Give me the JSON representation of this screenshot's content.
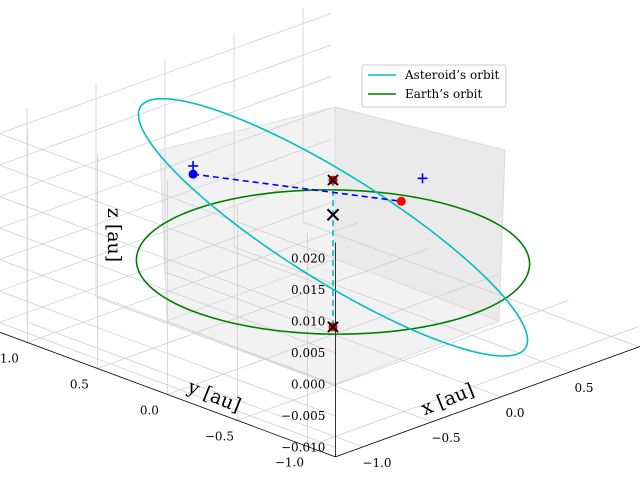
{
  "chart_data": {
    "type": "line",
    "projection": "3d",
    "grid": true,
    "legend_placement": "upper-right",
    "xlabel": "x [au]",
    "ylabel": "y [au]",
    "zlabel": "z [au]",
    "xlim": [
      -1.2,
      1.2
    ],
    "ylim": [
      -1.2,
      1.2
    ],
    "zlim": [
      -0.0115,
      0.0225
    ],
    "x_ticks": [
      "−1.0",
      "−0.5",
      "0.0",
      "0.5",
      "1.0"
    ],
    "y_ticks": [
      "−1.0",
      "−0.5",
      "0.0",
      "0.5",
      "1.0"
    ],
    "z_ticks": [
      "−0.010",
      "−0.005",
      "0.000",
      "0.005",
      "0.010",
      "0.015",
      "0.020"
    ],
    "series": [
      {
        "name": "Asteroid’s orbit",
        "color": "#00bfbf",
        "shape": "ellipse",
        "semi_major_axis": 1.0,
        "eccentricity": 0.1,
        "inclination_deg": 5,
        "z_amplitude": 0.0185,
        "z_offset": 0.0055,
        "apsides_angle_deg": 90
      },
      {
        "name": "Earth’s orbit",
        "color": "#008000",
        "shape": "circle",
        "radius": 1.0,
        "z": 0.0
      }
    ],
    "annotations": {
      "sun": {
        "x": 0.0,
        "y": 0.0,
        "z": 0.0075,
        "marker": "x",
        "color": "#000000"
      },
      "dashed_lines": [
        {
          "color": "#00bfbf",
          "from": [
            0.0,
            0.0,
            0.013
          ],
          "to": [
            0.0,
            0.0,
            -0.0103
          ]
        },
        {
          "color": "#0000ff",
          "from": [
            -0.05,
            0.95,
            0.0065
          ],
          "to": [
            0.85,
            0.35,
            0.0
          ]
        }
      ],
      "crosses_black": [
        {
          "x": 0.0,
          "y": 0.0,
          "z": 0.013
        },
        {
          "x": 0.0,
          "y": 0.0,
          "z": -0.0103
        }
      ],
      "plus_markers_blue": [
        {
          "x": -0.05,
          "y": 0.95,
          "z": 0.0078
        },
        {
          "x": 0.9,
          "y": -0.3,
          "z": 0.0235
        },
        {
          "x": 0.75,
          "y": 0.1,
          "z": 0.0065
        }
      ],
      "points_red": [
        {
          "x": 0.0,
          "y": 0.0,
          "z": 0.013
        },
        {
          "x": 0.85,
          "y": 0.35,
          "z": 0.0
        },
        {
          "x": 0.0,
          "y": 0.0,
          "z": -0.0103
        }
      ],
      "point_blue": {
        "x": -0.05,
        "y": 0.95,
        "z": 0.0065
      }
    }
  }
}
